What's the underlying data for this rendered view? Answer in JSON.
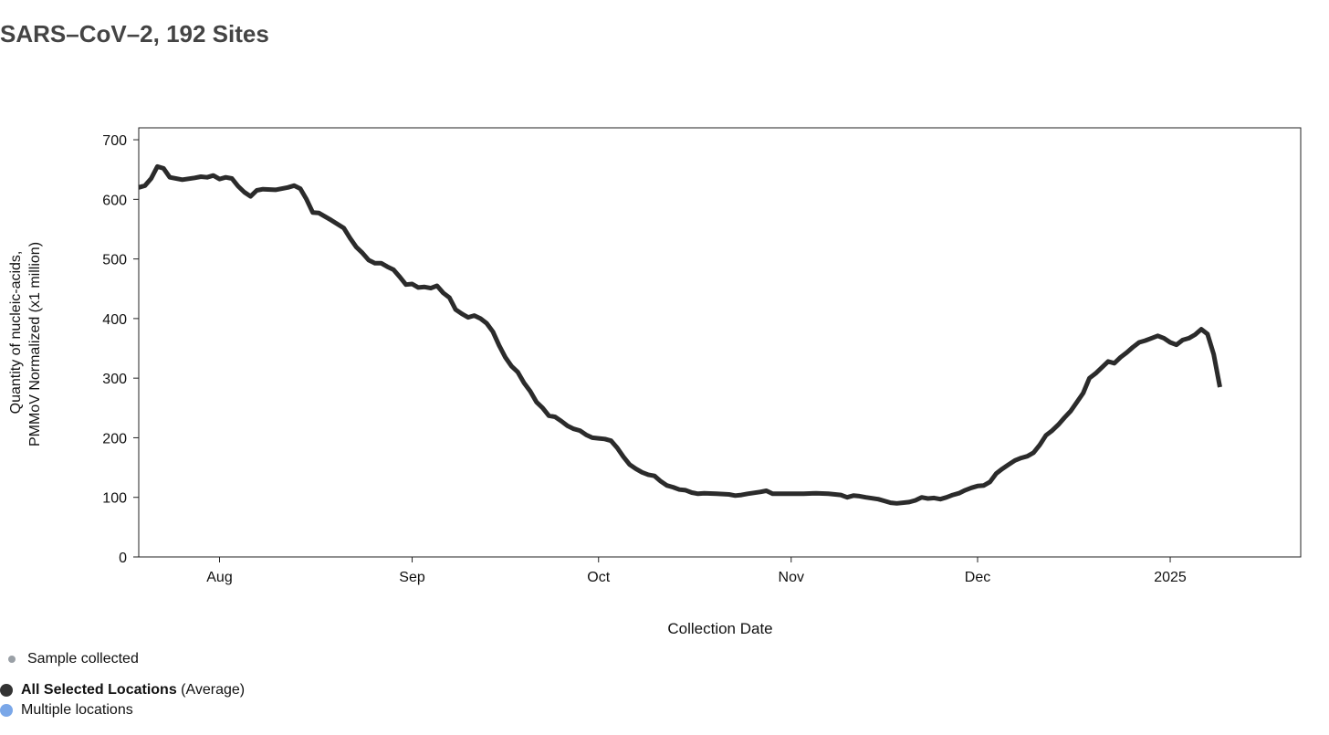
{
  "title": "SARS–CoV–2, 192 Sites",
  "chart_data": {
    "type": "line",
    "title": "SARS–CoV–2, 192 Sites",
    "xlabel": "Collection Date",
    "ylabel_lines": [
      "Quantity of nucleic-acids,",
      "PMMoV Normalized (x1 million)"
    ],
    "ylim": [
      0,
      720
    ],
    "xlim": [
      "2024-07-19",
      "2025-01-22"
    ],
    "yticks": [
      0,
      100,
      200,
      300,
      400,
      500,
      600,
      700
    ],
    "xticks": [
      {
        "date": "2024-08-01",
        "label": "Aug"
      },
      {
        "date": "2024-09-01",
        "label": "Sep"
      },
      {
        "date": "2024-10-01",
        "label": "Oct"
      },
      {
        "date": "2024-11-01",
        "label": "Nov"
      },
      {
        "date": "2024-12-01",
        "label": "Dec"
      },
      {
        "date": "2025-01-01",
        "label": "2025"
      }
    ],
    "grid": false,
    "line_color": "#2b2b2b",
    "series": [
      {
        "name": "All Selected Locations",
        "points": [
          [
            "2024-07-19",
            620
          ],
          [
            "2024-07-20",
            623
          ],
          [
            "2024-07-21",
            635
          ],
          [
            "2024-07-22",
            655
          ],
          [
            "2024-07-23",
            652
          ],
          [
            "2024-07-24",
            637
          ],
          [
            "2024-07-26",
            633
          ],
          [
            "2024-07-28",
            636
          ],
          [
            "2024-07-29",
            638
          ],
          [
            "2024-07-30",
            637
          ],
          [
            "2024-07-31",
            640
          ],
          [
            "2024-08-01",
            634
          ],
          [
            "2024-08-02",
            637
          ],
          [
            "2024-08-03",
            635
          ],
          [
            "2024-08-04",
            622
          ],
          [
            "2024-08-05",
            612
          ],
          [
            "2024-08-06",
            605
          ],
          [
            "2024-08-07",
            615
          ],
          [
            "2024-08-08",
            617
          ],
          [
            "2024-08-10",
            616
          ],
          [
            "2024-08-12",
            620
          ],
          [
            "2024-08-13",
            623
          ],
          [
            "2024-08-14",
            618
          ],
          [
            "2024-08-15",
            600
          ],
          [
            "2024-08-16",
            578
          ],
          [
            "2024-08-17",
            577
          ],
          [
            "2024-08-19",
            565
          ],
          [
            "2024-08-21",
            552
          ],
          [
            "2024-08-22",
            535
          ],
          [
            "2024-08-23",
            520
          ],
          [
            "2024-08-24",
            510
          ],
          [
            "2024-08-25",
            498
          ],
          [
            "2024-08-26",
            493
          ],
          [
            "2024-08-27",
            493
          ],
          [
            "2024-08-28",
            487
          ],
          [
            "2024-08-29",
            482
          ],
          [
            "2024-08-30",
            470
          ],
          [
            "2024-08-31",
            457
          ],
          [
            "2024-09-01",
            458
          ],
          [
            "2024-09-02",
            452
          ],
          [
            "2024-09-03",
            453
          ],
          [
            "2024-09-04",
            451
          ],
          [
            "2024-09-05",
            455
          ],
          [
            "2024-09-06",
            443
          ],
          [
            "2024-09-07",
            435
          ],
          [
            "2024-09-08",
            415
          ],
          [
            "2024-09-09",
            408
          ],
          [
            "2024-09-10",
            402
          ],
          [
            "2024-09-11",
            405
          ],
          [
            "2024-09-12",
            400
          ],
          [
            "2024-09-13",
            392
          ],
          [
            "2024-09-14",
            378
          ],
          [
            "2024-09-15",
            355
          ],
          [
            "2024-09-16",
            335
          ],
          [
            "2024-09-17",
            320
          ],
          [
            "2024-09-18",
            310
          ],
          [
            "2024-09-19",
            292
          ],
          [
            "2024-09-20",
            278
          ],
          [
            "2024-09-21",
            260
          ],
          [
            "2024-09-22",
            250
          ],
          [
            "2024-09-23",
            237
          ],
          [
            "2024-09-24",
            235
          ],
          [
            "2024-09-25",
            228
          ],
          [
            "2024-09-26",
            220
          ],
          [
            "2024-09-27",
            215
          ],
          [
            "2024-09-28",
            212
          ],
          [
            "2024-09-29",
            205
          ],
          [
            "2024-09-30",
            200
          ],
          [
            "2024-10-01",
            199
          ],
          [
            "2024-10-02",
            198
          ],
          [
            "2024-10-03",
            195
          ],
          [
            "2024-10-04",
            183
          ],
          [
            "2024-10-05",
            168
          ],
          [
            "2024-10-06",
            155
          ],
          [
            "2024-10-07",
            148
          ],
          [
            "2024-10-08",
            142
          ],
          [
            "2024-10-09",
            138
          ],
          [
            "2024-10-10",
            136
          ],
          [
            "2024-10-11",
            127
          ],
          [
            "2024-10-12",
            120
          ],
          [
            "2024-10-13",
            117
          ],
          [
            "2024-10-14",
            113
          ],
          [
            "2024-10-15",
            112
          ],
          [
            "2024-10-16",
            108
          ],
          [
            "2024-10-17",
            106
          ],
          [
            "2024-10-18",
            107
          ],
          [
            "2024-10-20",
            106
          ],
          [
            "2024-10-22",
            105
          ],
          [
            "2024-10-23",
            103
          ],
          [
            "2024-10-24",
            104
          ],
          [
            "2024-10-25",
            106
          ],
          [
            "2024-10-27",
            109
          ],
          [
            "2024-10-28",
            111
          ],
          [
            "2024-10-29",
            106
          ],
          [
            "2024-10-31",
            106
          ],
          [
            "2024-11-03",
            106
          ],
          [
            "2024-11-05",
            107
          ],
          [
            "2024-11-07",
            106
          ],
          [
            "2024-11-09",
            104
          ],
          [
            "2024-11-10",
            100
          ],
          [
            "2024-11-11",
            103
          ],
          [
            "2024-11-12",
            102
          ],
          [
            "2024-11-13",
            100
          ],
          [
            "2024-11-15",
            97
          ],
          [
            "2024-11-16",
            94
          ],
          [
            "2024-11-17",
            91
          ],
          [
            "2024-11-18",
            90
          ],
          [
            "2024-11-20",
            92
          ],
          [
            "2024-11-21",
            95
          ],
          [
            "2024-11-22",
            100
          ],
          [
            "2024-11-23",
            98
          ],
          [
            "2024-11-24",
            99
          ],
          [
            "2024-11-25",
            97
          ],
          [
            "2024-11-26",
            100
          ],
          [
            "2024-11-27",
            104
          ],
          [
            "2024-11-28",
            107
          ],
          [
            "2024-11-29",
            112
          ],
          [
            "2024-11-30",
            116
          ],
          [
            "2024-12-01",
            119
          ],
          [
            "2024-12-02",
            120
          ],
          [
            "2024-12-03",
            126
          ],
          [
            "2024-12-04",
            140
          ],
          [
            "2024-12-05",
            148
          ],
          [
            "2024-12-06",
            155
          ],
          [
            "2024-12-07",
            162
          ],
          [
            "2024-12-08",
            166
          ],
          [
            "2024-12-09",
            169
          ],
          [
            "2024-12-10",
            175
          ],
          [
            "2024-12-11",
            188
          ],
          [
            "2024-12-12",
            204
          ],
          [
            "2024-12-13",
            212
          ],
          [
            "2024-12-14",
            222
          ],
          [
            "2024-12-15",
            234
          ],
          [
            "2024-12-16",
            245
          ],
          [
            "2024-12-17",
            260
          ],
          [
            "2024-12-18",
            275
          ],
          [
            "2024-12-19",
            300
          ],
          [
            "2024-12-20",
            308
          ],
          [
            "2024-12-21",
            318
          ],
          [
            "2024-12-22",
            328
          ],
          [
            "2024-12-23",
            325
          ],
          [
            "2024-12-24",
            335
          ],
          [
            "2024-12-25",
            343
          ],
          [
            "2024-12-26",
            352
          ],
          [
            "2024-12-27",
            360
          ],
          [
            "2024-12-28",
            363
          ],
          [
            "2024-12-29",
            367
          ],
          [
            "2024-12-30",
            371
          ],
          [
            "2024-12-31",
            367
          ],
          [
            "2025-01-01",
            360
          ],
          [
            "2025-01-02",
            356
          ],
          [
            "2025-01-03",
            364
          ],
          [
            "2025-01-04",
            367
          ],
          [
            "2025-01-05",
            373
          ],
          [
            "2025-01-06",
            382
          ],
          [
            "2025-01-07",
            374
          ],
          [
            "2025-01-08",
            340
          ],
          [
            "2025-01-09",
            285
          ]
        ]
      }
    ]
  },
  "legend": {
    "sample": {
      "label": "Sample collected",
      "color": "#9aa0a6"
    },
    "selected": {
      "label_bold": "All Selected Locations",
      "label_rest": " (Average)",
      "color": "#333333"
    },
    "multiple": {
      "label": "Multiple locations",
      "color": "#7aa7e8"
    }
  }
}
